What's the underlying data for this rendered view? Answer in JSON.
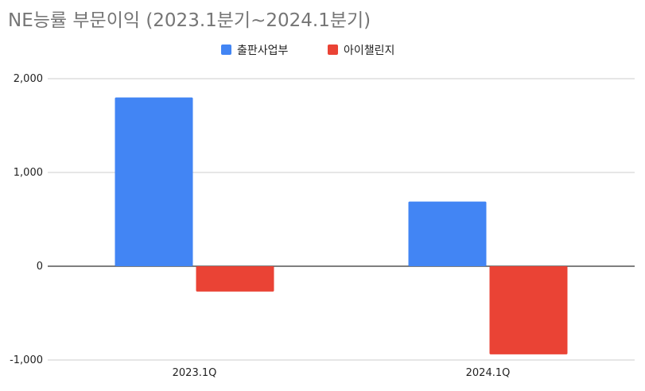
{
  "chart_data": {
    "type": "bar",
    "title": "NE능률 부문이익 (2023.1분기~2024.1분기)",
    "categories": [
      "2023.1Q",
      "2024.1Q"
    ],
    "series": [
      {
        "name": "출판사업부",
        "color": "#4285f4",
        "values": [
          1800,
          690
        ]
      },
      {
        "name": "아이챌린지",
        "color": "#ea4335",
        "values": [
          -270,
          -940
        ]
      }
    ],
    "ylim": [
      -1000,
      2000
    ],
    "yticks": [
      2000,
      1000,
      0,
      -1000
    ],
    "ytick_labels": [
      "2,000",
      "1,000",
      "0",
      "-1,000"
    ],
    "grid": true,
    "legend": "top"
  }
}
